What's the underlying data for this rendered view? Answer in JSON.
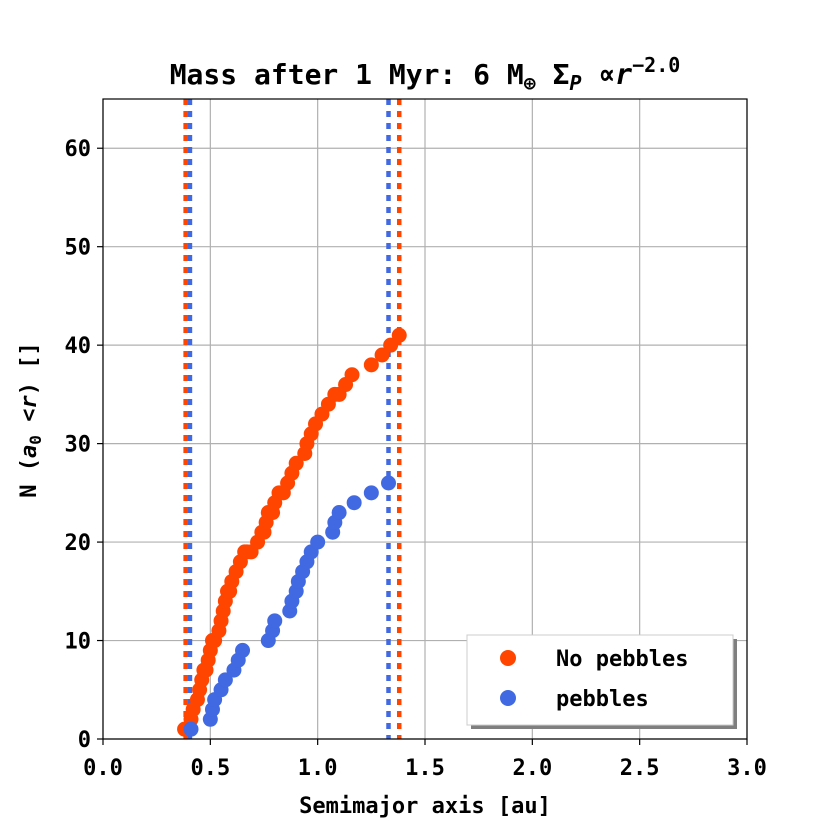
{
  "chart_data": {
    "type": "scatter",
    "title_prefix": "Mass after 1 Myr: 6 M",
    "title_earth": "⊕",
    "title_sigma": "Σ",
    "title_sub": "P",
    "title_prop": "∝",
    "title_r": "r",
    "title_exp": "−2.0",
    "xlabel": "Semimajor axis [au]",
    "ylabel_prefix": "N (",
    "ylabel_a": "a",
    "ylabel_sub": "0",
    "ylabel_lt": "<",
    "ylabel_r": "r",
    "ylabel_suffix": ") []",
    "xlim": [
      0,
      3
    ],
    "ylim": [
      0,
      65
    ],
    "xticks": [
      "0.0",
      "0.5",
      "1.0",
      "1.5",
      "2.0",
      "2.5",
      "3.0"
    ],
    "yticks": [
      "0",
      "10",
      "20",
      "30",
      "40",
      "50",
      "60"
    ],
    "xtick_values": [
      0,
      0.5,
      1.0,
      1.5,
      2.0,
      2.5,
      3.0
    ],
    "ytick_values": [
      0,
      10,
      20,
      30,
      40,
      50,
      60
    ],
    "grid": true,
    "legend_position": "lower-right",
    "series": [
      {
        "name": "No pebbles",
        "color": "#ff4500",
        "vlines": [
          0.385,
          1.38
        ],
        "x": [
          0.38,
          0.41,
          0.42,
          0.44,
          0.45,
          0.46,
          0.47,
          0.48,
          0.49,
          0.5,
          0.51,
          0.52,
          0.54,
          0.55,
          0.56,
          0.57,
          0.58,
          0.59,
          0.6,
          0.62,
          0.64,
          0.66,
          0.67,
          0.69,
          0.72,
          0.74,
          0.75,
          0.76,
          0.77,
          0.79,
          0.8,
          0.82,
          0.84,
          0.86,
          0.88,
          0.9,
          0.94,
          0.95,
          0.97,
          0.99,
          1.02,
          1.05,
          1.08,
          1.1,
          1.13,
          1.16,
          1.25,
          1.3,
          1.34,
          1.38
        ],
        "y": [
          1,
          2,
          3,
          4,
          5,
          6,
          7,
          7,
          8,
          9,
          10,
          10,
          11,
          12,
          13,
          14,
          15,
          15,
          16,
          17,
          18,
          19,
          19,
          19,
          20,
          21,
          21,
          22,
          23,
          23,
          24,
          25,
          25,
          26,
          27,
          28,
          29,
          30,
          31,
          32,
          33,
          34,
          35,
          35,
          36,
          37,
          38,
          39,
          40,
          41
        ],
        "y_cumulative": true
      },
      {
        "name": "pebbles",
        "color": "#4169e1",
        "vlines": [
          0.405,
          1.33
        ],
        "x": [
          0.41,
          0.5,
          0.51,
          0.52,
          0.55,
          0.57,
          0.61,
          0.63,
          0.65,
          0.77,
          0.79,
          0.8,
          0.87,
          0.88,
          0.9,
          0.91,
          0.93,
          0.95,
          0.97,
          1.0,
          1.07,
          1.08,
          1.1,
          1.17,
          1.25,
          1.33
        ],
        "y": [
          1,
          2,
          3,
          4,
          5,
          6,
          7,
          8,
          9,
          10,
          11,
          12,
          13,
          14,
          15,
          16,
          17,
          18,
          19,
          20,
          21,
          22,
          23,
          24,
          25,
          26
        ]
      }
    ]
  }
}
